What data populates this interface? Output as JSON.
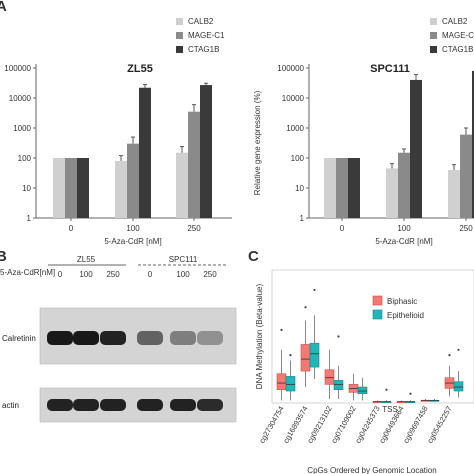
{
  "panels": {
    "a": "A",
    "b": "B",
    "c": "C"
  },
  "colors": {
    "calb2": "#d0d0d0",
    "mage": "#8a8a8a",
    "ctag": "#3a3a3a",
    "biphasic": "#f27a73",
    "epithelioid": "#22b5b6",
    "biphasic_edge": "#c9524d",
    "epithelioid_edge": "#138a8b"
  },
  "chart_data": [
    {
      "id": "zl55",
      "type": "bar",
      "title": "ZL55",
      "xlabel": "5-Aza-CdR [nM]",
      "ylabel": "",
      "log_scale": true,
      "ylim": [
        1,
        100000
      ],
      "yticks": [
        "1",
        "10",
        "100",
        "1000",
        "10000",
        "100000"
      ],
      "categories": [
        "0",
        "100",
        "250"
      ],
      "series": [
        {
          "name": "CALB2",
          "values": [
            100,
            80,
            150
          ],
          "errors": [
            0,
            40,
            90
          ]
        },
        {
          "name": "MAGE-C1",
          "values": [
            100,
            300,
            3500
          ],
          "errors": [
            0,
            200,
            2500
          ]
        },
        {
          "name": "CTAG1B",
          "values": [
            100,
            22000,
            27000
          ],
          "errors": [
            0,
            6000,
            4000
          ]
        }
      ],
      "legend": [
        "CALB2",
        "MAGE-C1",
        "CTAG1B"
      ]
    },
    {
      "id": "spc111",
      "type": "bar",
      "title": "SPC111",
      "xlabel": "5-Aza-CdR [nM]",
      "ylabel": "Relative gene expression (%)",
      "log_scale": true,
      "ylim": [
        1,
        100000
      ],
      "yticks": [
        "1",
        "10",
        "100",
        "1000",
        "10000",
        "100000"
      ],
      "categories": [
        "0",
        "100",
        "250"
      ],
      "series": [
        {
          "name": "CALB2",
          "values": [
            100,
            45,
            40
          ],
          "errors": [
            0,
            20,
            20
          ]
        },
        {
          "name": "MAGE-C1",
          "values": [
            100,
            150,
            600
          ],
          "errors": [
            0,
            50,
            400
          ]
        },
        {
          "name": "CTAG1B",
          "values": [
            100,
            40000,
            80000
          ],
          "errors": [
            0,
            20000,
            0
          ]
        }
      ],
      "legend": [
        "CALB2",
        "MAGE-C",
        "CTAG1B"
      ]
    },
    {
      "id": "methylation",
      "type": "box",
      "title": "",
      "xlabel": "CpGs Ordered by Genomic Location",
      "ylabel": "DNA Methylation (Beta-value)",
      "ylim": [
        0,
        1
      ],
      "tss_label": "TSS",
      "categories": [
        "cg27304754",
        "cg16893574",
        "cg09213102",
        "cg07109002",
        "cg04245373",
        "cg06493664",
        "cg09697458",
        "cg05452257"
      ],
      "legend": [
        "Biphasic",
        "Epithelioid"
      ],
      "series": [
        {
          "name": "Biphasic",
          "boxes": [
            [
              0.02,
              0.1,
              0.15,
              0.22,
              0.4
            ],
            [
              0.12,
              0.24,
              0.33,
              0.44,
              0.62
            ],
            [
              0.03,
              0.14,
              0.19,
              0.25,
              0.4
            ],
            [
              0.02,
              0.08,
              0.11,
              0.14,
              0.22
            ],
            [
              0.0,
              0.01,
              0.01,
              0.01,
              0.02
            ],
            [
              0.0,
              0.01,
              0.01,
              0.01,
              0.02
            ],
            [
              0.01,
              0.02,
              0.02,
              0.02,
              0.03
            ],
            [
              0.05,
              0.11,
              0.15,
              0.19,
              0.28
            ]
          ],
          "outliers": [
            [
              0.55
            ],
            [
              0.72
            ],
            [],
            [],
            [],
            [],
            [],
            [
              0.36
            ]
          ]
        },
        {
          "name": "Epithelioid",
          "boxes": [
            [
              0.02,
              0.09,
              0.14,
              0.2,
              0.32
            ],
            [
              0.18,
              0.27,
              0.37,
              0.45,
              0.66
            ],
            [
              0.03,
              0.1,
              0.14,
              0.17,
              0.28
            ],
            [
              0.02,
              0.07,
              0.09,
              0.12,
              0.19
            ],
            [
              0.0,
              0.01,
              0.01,
              0.01,
              0.02
            ],
            [
              0.0,
              0.01,
              0.01,
              0.01,
              0.02
            ],
            [
              0.01,
              0.02,
              0.02,
              0.02,
              0.03
            ],
            [
              0.04,
              0.09,
              0.12,
              0.16,
              0.24
            ]
          ],
          "outliers": [
            [
              0.36
            ],
            [
              0.85
            ],
            [
              0.5
            ],
            [],
            [
              0.1
            ],
            [
              0.07
            ],
            [],
            [
              0.4
            ]
          ]
        }
      ]
    }
  ],
  "western": {
    "row_label": "5-Aza-CdR[nM]",
    "groups": [
      "ZL55",
      "SPC111"
    ],
    "lanes": [
      "0",
      "100",
      "250",
      "0",
      "100",
      "250"
    ],
    "blots": [
      {
        "label": "Calretinin",
        "intensity": [
          0.95,
          0.95,
          0.9,
          0.55,
          0.4,
          0.3
        ]
      },
      {
        "label": "actin",
        "intensity": [
          0.9,
          0.9,
          0.9,
          0.9,
          0.9,
          0.85
        ]
      }
    ]
  }
}
